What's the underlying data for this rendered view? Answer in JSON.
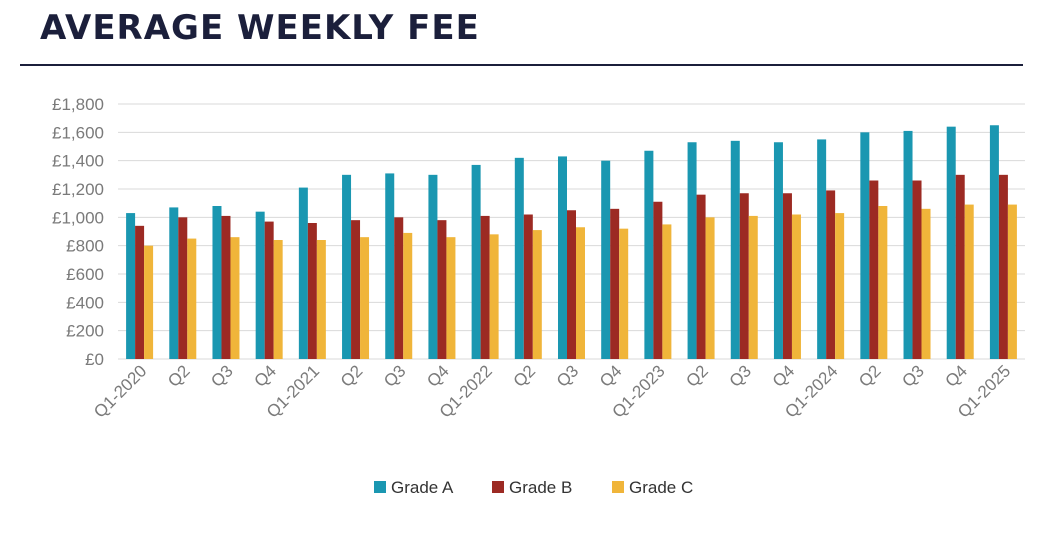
{
  "page": {
    "title": "AVERAGE WEEKLY FEE"
  },
  "chart_data": {
    "type": "bar",
    "title": "",
    "xlabel": "",
    "ylabel": "",
    "categories": [
      "Q1-2020",
      "Q2",
      "Q3",
      "Q4",
      "Q1-2021",
      "Q2",
      "Q3",
      "Q4",
      "Q1-2022",
      "Q2",
      "Q3",
      "Q4",
      "Q1-2023",
      "Q2",
      "Q3",
      "Q4",
      "Q1-2024",
      "Q2",
      "Q3",
      "Q4",
      "Q1-2025"
    ],
    "series": [
      {
        "name": "Grade A",
        "color": "#1a97b1",
        "values": [
          1030,
          1070,
          1080,
          1040,
          1210,
          1300,
          1310,
          1300,
          1370,
          1420,
          1430,
          1400,
          1470,
          1530,
          1540,
          1530,
          1550,
          1600,
          1610,
          1640,
          1650
        ]
      },
      {
        "name": "Grade B",
        "color": "#9c2a23",
        "values": [
          940,
          1000,
          1010,
          970,
          960,
          980,
          1000,
          980,
          1010,
          1020,
          1050,
          1060,
          1110,
          1160,
          1170,
          1170,
          1190,
          1260,
          1260,
          1300,
          1300
        ]
      },
      {
        "name": "Grade C",
        "color": "#f0b53a",
        "values": [
          800,
          850,
          860,
          840,
          840,
          860,
          890,
          860,
          880,
          910,
          930,
          920,
          950,
          1000,
          1010,
          1020,
          1030,
          1080,
          1060,
          1090,
          1090
        ]
      }
    ],
    "ylim": [
      0,
      1800
    ],
    "yticks": [
      "£0",
      "£200",
      "£400",
      "£600",
      "£800",
      "£1,000",
      "£1,200",
      "£1,400",
      "£1,600",
      "£1,800"
    ],
    "grid": true,
    "legend_position": "bottom"
  }
}
